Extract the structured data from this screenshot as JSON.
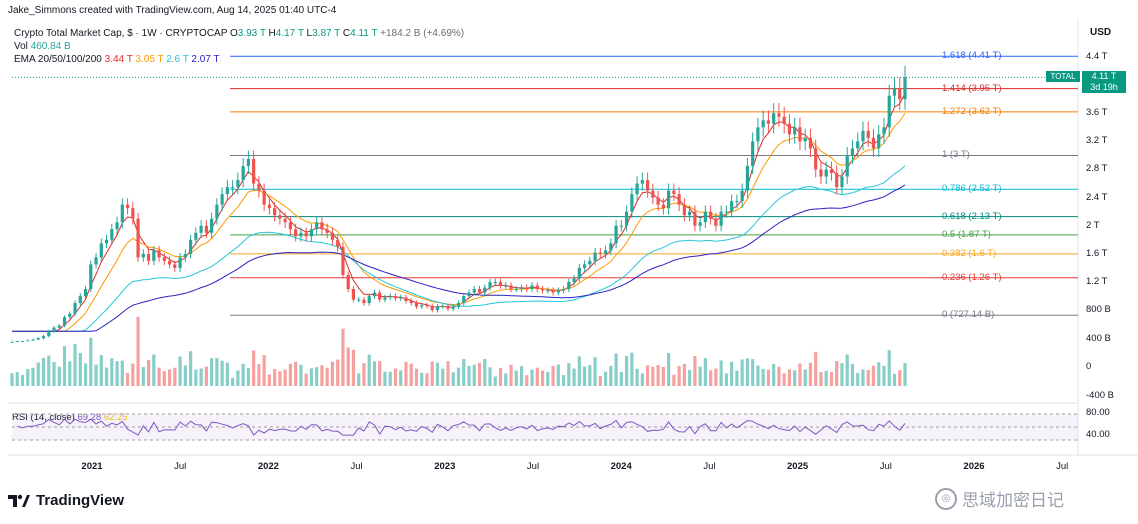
{
  "header": {
    "credit": "Jake_Simmons created with TradingView.com, Aug 14, 2025 01:40 UTC-4"
  },
  "legend": {
    "title": "Crypto Total Market Cap, $ · 1W · CRYPTOCAP",
    "ohlc": [
      {
        "k": "O",
        "v": "3.93 T"
      },
      {
        "k": "H",
        "v": "4.17 T"
      },
      {
        "k": "L",
        "v": "3.87 T"
      },
      {
        "k": "C",
        "v": "4.11 T"
      }
    ],
    "change": "+184.2 B (+4.69%)",
    "vol_label": "Vol",
    "vol_value": "460.84 B",
    "ema_label": "EMA 20/50/100/200",
    "ema_values": [
      {
        "v": "3.44 T",
        "color": "#e02a2a"
      },
      {
        "v": "3.05 T",
        "color": "#ff9800"
      },
      {
        "v": "2.6 T",
        "color": "#26c6da"
      },
      {
        "v": "2.07 T",
        "color": "#2a22c0"
      }
    ]
  },
  "rsi": {
    "label": "RSI (14, close)",
    "value": "69.28",
    "value2": "62.25",
    "color": "#7e57c2"
  },
  "price_axis": {
    "unit": "USD",
    "ticks": [
      "4.4 T",
      "4 T",
      "3.6 T",
      "3.2 T",
      "2.8 T",
      "2.4 T",
      "2 T",
      "1.6 T",
      "1.2 T"
    ],
    "vol_ticks": [
      "800 B",
      "400 B",
      "0",
      "-400 B"
    ],
    "rsi_ticks": [
      "80.00",
      "40.00"
    ]
  },
  "time_axis": [
    {
      "label": "2021",
      "year": true
    },
    {
      "label": "Jul",
      "year": false
    },
    {
      "label": "2022",
      "year": true
    },
    {
      "label": "Jul",
      "year": false
    },
    {
      "label": "2023",
      "year": true
    },
    {
      "label": "Jul",
      "year": false
    },
    {
      "label": "2024",
      "year": true
    },
    {
      "label": "Jul",
      "year": false
    },
    {
      "label": "2025",
      "year": true
    },
    {
      "label": "Jul",
      "year": false
    },
    {
      "label": "2026",
      "year": true
    },
    {
      "label": "Jul",
      "year": false
    }
  ],
  "total_tag": {
    "symbol": "TOTAL",
    "price": "4.11 T",
    "countdown": "3d 19h",
    "color": "#089981"
  },
  "branding": {
    "logo": "TradingView",
    "watermark": "思域加密日记"
  },
  "chart_data": {
    "type": "candlestick",
    "title": "Crypto Total Market Cap",
    "x_start": "2020-08",
    "x_end": "2025-08",
    "y_unit": "T USD",
    "close": [
      0.35,
      0.36,
      0.36,
      0.37,
      0.38,
      0.4,
      0.43,
      0.5,
      0.55,
      0.58,
      0.7,
      0.75,
      0.9,
      1.0,
      1.1,
      1.45,
      1.55,
      1.75,
      1.8,
      1.95,
      2.05,
      2.3,
      2.25,
      2.1,
      1.55,
      1.6,
      1.5,
      1.65,
      1.55,
      1.5,
      1.45,
      1.4,
      1.55,
      1.6,
      1.8,
      1.9,
      2.0,
      1.9,
      2.1,
      2.3,
      2.45,
      2.55,
      2.55,
      2.65,
      2.85,
      2.95,
      2.6,
      2.5,
      2.3,
      2.25,
      2.15,
      2.1,
      2.05,
      1.95,
      1.85,
      1.9,
      1.85,
      1.95,
      2.05,
      1.95,
      1.9,
      1.8,
      1.7,
      1.3,
      1.1,
      0.95,
      0.95,
      0.9,
      1.0,
      1.05,
      0.95,
      0.98,
      1.0,
      0.97,
      0.98,
      0.93,
      0.9,
      0.85,
      0.87,
      0.86,
      0.8,
      0.85,
      0.86,
      0.82,
      0.85,
      0.9,
      1.0,
      1.05,
      1.1,
      1.05,
      1.12,
      1.2,
      1.2,
      1.15,
      1.15,
      1.1,
      1.1,
      1.12,
      1.1,
      1.15,
      1.1,
      1.08,
      1.08,
      1.05,
      1.08,
      1.1,
      1.2,
      1.25,
      1.4,
      1.45,
      1.5,
      1.62,
      1.6,
      1.65,
      1.75,
      2.0,
      2.0,
      2.2,
      2.45,
      2.6,
      2.65,
      2.5,
      2.4,
      2.3,
      2.25,
      2.5,
      2.45,
      2.3,
      2.15,
      2.2,
      2.0,
      2.05,
      2.2,
      2.1,
      2.0,
      2.2,
      2.2,
      2.35,
      2.35,
      2.5,
      2.85,
      3.2,
      3.4,
      3.5,
      3.45,
      3.6,
      3.55,
      3.45,
      3.3,
      3.4,
      3.2,
      3.25,
      3.1,
      2.8,
      2.7,
      2.8,
      2.75,
      2.55,
      2.7,
      3.0,
      3.1,
      3.2,
      3.35,
      3.25,
      3.1,
      3.3,
      3.4,
      3.85,
      3.95,
      3.8,
      4.11
    ],
    "ema20_last": 3.44,
    "ema50_last": 3.05,
    "ema100_last": 2.6,
    "ema200_last": 2.07,
    "fib_levels": [
      {
        "ratio": "1.618",
        "value": "4.41 T",
        "color": "#2962ff"
      },
      {
        "ratio": "1.414",
        "value": "3.95 T",
        "color": "#e02a2a"
      },
      {
        "ratio": "1.272",
        "value": "3.62 T",
        "color": "#f57c00"
      },
      {
        "ratio": "1",
        "value": "3 T",
        "color": "#787b86"
      },
      {
        "ratio": "0.786",
        "value": "2.52 T",
        "color": "#00bcd4"
      },
      {
        "ratio": "0.618",
        "value": "2.13 T",
        "color": "#00897b"
      },
      {
        "ratio": "0.5",
        "value": "1.87 T",
        "color": "#43a047"
      },
      {
        "ratio": "0.382",
        "value": "1.6 T",
        "color": "#f5a623"
      },
      {
        "ratio": "0.236",
        "value": "1.26 T",
        "color": "#e53935"
      },
      {
        "ratio": "0",
        "value": "727.14 B",
        "color": "#787b86"
      }
    ],
    "rsi_last": 69.28,
    "grid": false,
    "up_color": "#26a69a",
    "down_color": "#ef5350"
  }
}
